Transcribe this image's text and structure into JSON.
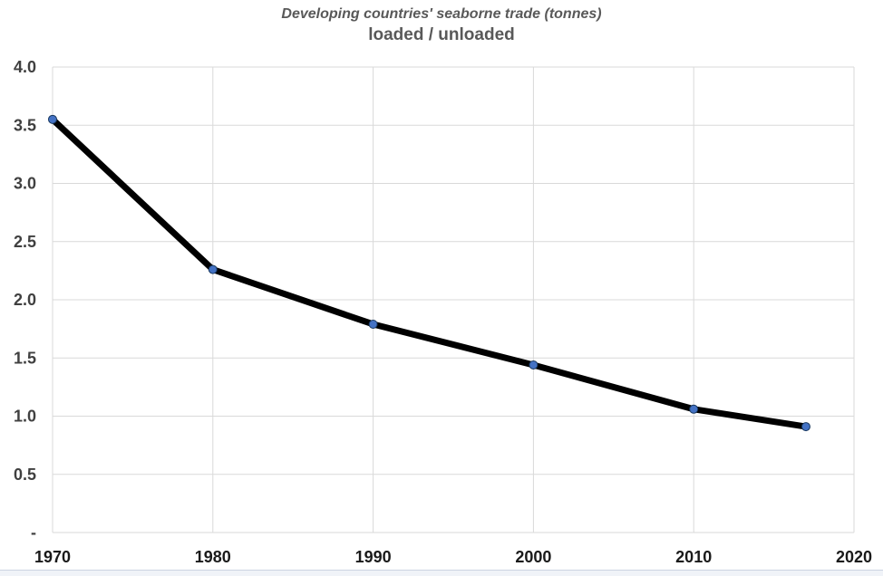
{
  "chart_data": {
    "type": "line",
    "title": "Developing countries' seaborne trade (tonnes)",
    "subtitle": "loaded / unloaded",
    "xlabel": "",
    "ylabel": "",
    "xlim": [
      1970,
      2020
    ],
    "ylim": [
      0,
      4
    ],
    "grid": true,
    "legend": "none",
    "series": [
      {
        "name": "loaded / unloaded",
        "x": [
          1970,
          1980,
          1990,
          2000,
          2010,
          2017
        ],
        "y": [
          3.55,
          2.26,
          1.79,
          1.44,
          1.06,
          0.91
        ]
      }
    ],
    "x_ticks": [
      {
        "value": 1970,
        "label": "1970"
      },
      {
        "value": 1980,
        "label": "1980"
      },
      {
        "value": 1990,
        "label": "1990"
      },
      {
        "value": 2000,
        "label": "2000"
      },
      {
        "value": 2010,
        "label": "2010"
      },
      {
        "value": 2020,
        "label": "2020"
      }
    ],
    "y_ticks": [
      {
        "value": 0,
        "label": "-"
      },
      {
        "value": 0.5,
        "label": "0.5"
      },
      {
        "value": 1,
        "label": "1.0"
      },
      {
        "value": 1.5,
        "label": "1.5"
      },
      {
        "value": 2,
        "label": "2.0"
      },
      {
        "value": 2.5,
        "label": "2.5"
      },
      {
        "value": 3,
        "label": "3.0"
      },
      {
        "value": 3.5,
        "label": "3.5"
      },
      {
        "value": 4,
        "label": "4.0"
      }
    ],
    "styles": {
      "line_color": "#000000",
      "line_width": 7,
      "marker_fill": "#4472c4",
      "marker_stroke": "#17375e",
      "grid_color": "#d9d9d9",
      "title_color": "#595959",
      "y_label_color": "#404040",
      "x_label_color": "#1a1a1a"
    }
  }
}
